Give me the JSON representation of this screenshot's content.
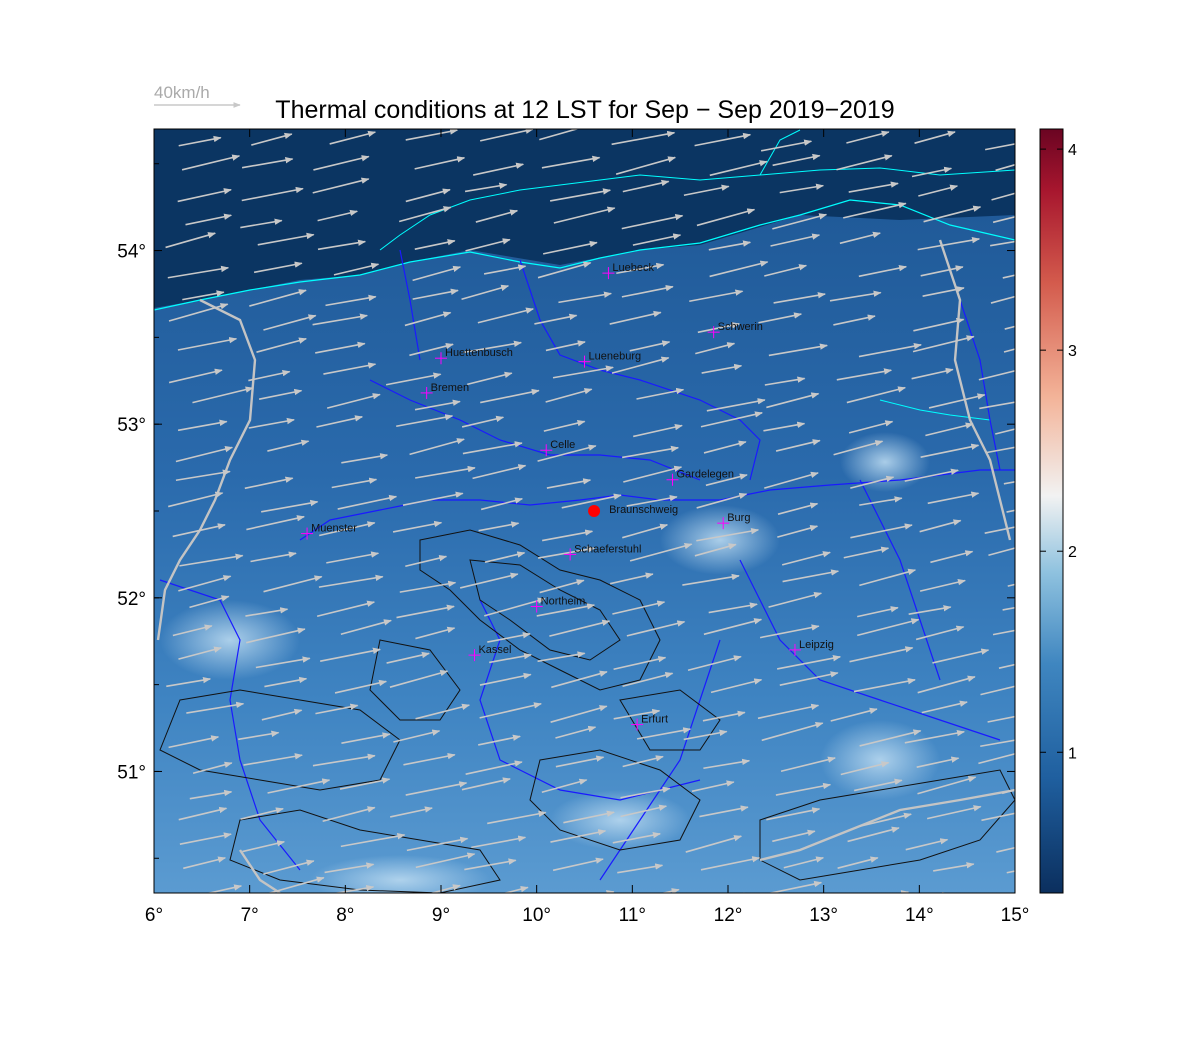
{
  "title": "Thermal conditions at 12 LST for Sep − Sep  2019−2019",
  "wind_key_label": "40km/h",
  "map": {
    "lon_range": [
      6,
      15
    ],
    "lat_range": [
      50.3,
      54.7
    ],
    "background_colors": {
      "north_sea": "#0b3562",
      "land_dark": "#1f5d9f",
      "land_mid": "#3c7fbd",
      "land_light": "#8fc0e3"
    },
    "x_ticks": [
      "6°",
      "7°",
      "8°",
      "9°",
      "10°",
      "11°",
      "12°",
      "13°",
      "14°",
      "15°"
    ],
    "y_ticks": [
      "51°",
      "52°",
      "53°",
      "54°"
    ],
    "coastline_color": "#00ffff",
    "rivers_color": "#0000ff",
    "borders_color": "#c8c8c8",
    "contour_color": "#000000",
    "wind_arrow_color": "#c8c8c8",
    "wind_direction": "west-southwest"
  },
  "selected_site": {
    "name": "Braunschweig",
    "lon": 10.6,
    "lat": 52.5,
    "color": "#ff0000"
  },
  "cities": [
    {
      "name": "Luebeck",
      "lon": 10.75,
      "lat": 53.87
    },
    {
      "name": "Schwerin",
      "lon": 11.85,
      "lat": 53.53
    },
    {
      "name": "Huettenbusch",
      "lon": 9.0,
      "lat": 53.38
    },
    {
      "name": "Lueneburg",
      "lon": 10.5,
      "lat": 53.36
    },
    {
      "name": "Bremen",
      "lon": 8.85,
      "lat": 53.18
    },
    {
      "name": "Celle",
      "lon": 10.1,
      "lat": 52.85
    },
    {
      "name": "Gardelegen",
      "lon": 11.42,
      "lat": 52.68
    },
    {
      "name": "Burg",
      "lon": 11.95,
      "lat": 52.43
    },
    {
      "name": "Muenster",
      "lon": 7.6,
      "lat": 52.37
    },
    {
      "name": "Schaeferstuhl",
      "lon": 10.35,
      "lat": 52.25
    },
    {
      "name": "Northeim",
      "lon": 10.0,
      "lat": 51.95
    },
    {
      "name": "Kassel",
      "lon": 9.35,
      "lat": 51.67
    },
    {
      "name": "Leipzig",
      "lon": 12.7,
      "lat": 51.7
    },
    {
      "name": "Erfurt",
      "lon": 11.05,
      "lat": 51.27
    }
  ],
  "colorbar": {
    "min": 0.3,
    "max": 4.1,
    "ticks": [
      "1",
      "2",
      "3",
      "4"
    ],
    "tick_values": [
      1,
      2,
      3,
      4
    ],
    "colors": [
      "#08306b",
      "#2166ac",
      "#4393c3",
      "#92c5de",
      "#f7f7f7",
      "#f4a582",
      "#d6604d",
      "#b2182b",
      "#67001f"
    ]
  }
}
